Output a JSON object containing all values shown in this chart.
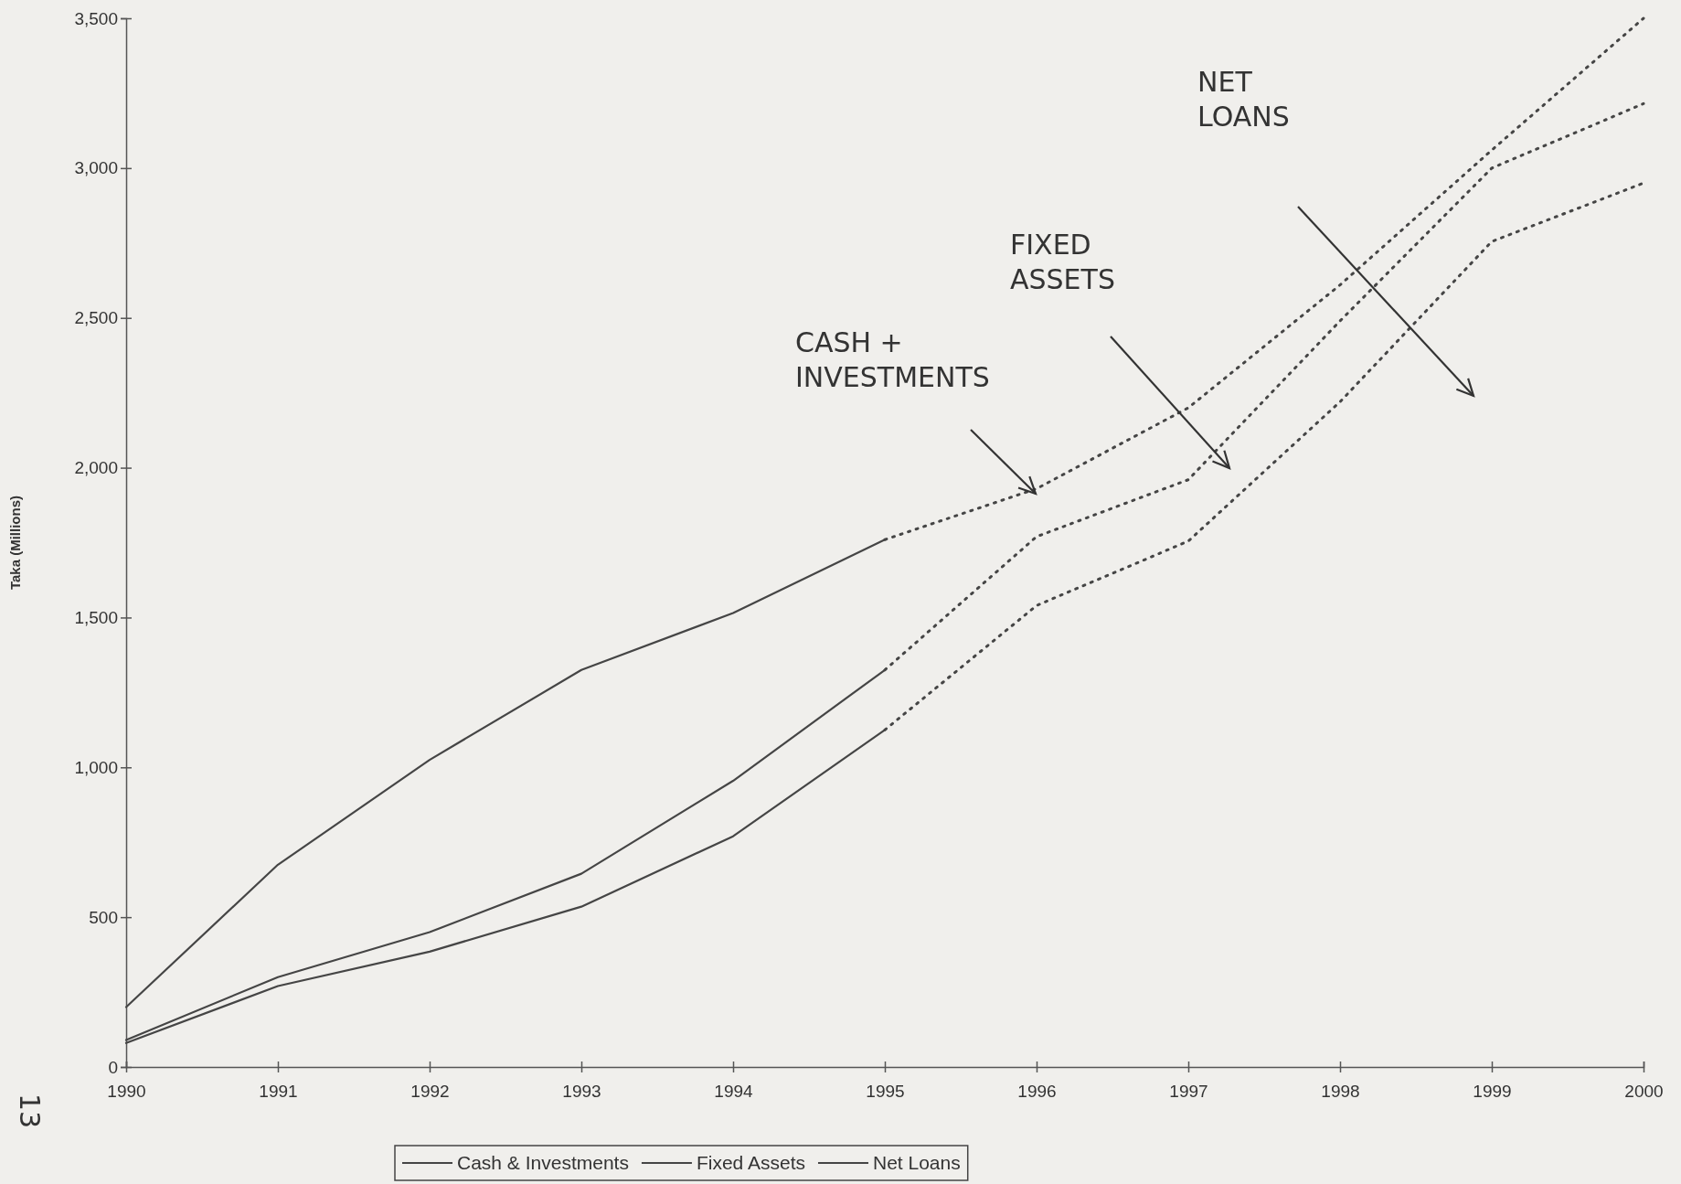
{
  "chart_data": {
    "type": "line",
    "ylabel": "Taka (Millions)",
    "xlim": [
      1990,
      2000
    ],
    "xticks": [
      1990,
      1991,
      1992,
      1993,
      1994,
      1995,
      1996,
      1997,
      1998,
      1999,
      2000
    ],
    "ylim": [
      0,
      3500
    ],
    "yticks": [
      0,
      {
        "value": 500,
        "label": "500"
      },
      {
        "value": 1000,
        "label": "1,000"
      },
      {
        "value": 1500,
        "label": "1,500"
      },
      {
        "value": 2000,
        "label": "2,000"
      },
      {
        "value": 2500,
        "label": "2,500"
      },
      {
        "value": 3000,
        "label": "3,000"
      },
      {
        "value": 3500,
        "label": "3,500"
      }
    ],
    "grid": false,
    "legend": "bottom",
    "marker": "none",
    "series": [
      {
        "name": "Cash & Investments",
        "color": "#454545",
        "line_style": "solid",
        "x": [
          1990,
          1991,
          1992,
          1993,
          1994,
          1995
        ],
        "values": [
          200,
          675,
          1025,
          1325,
          1515,
          1760
        ]
      },
      {
        "name": "Fixed Assets",
        "color": "#454545",
        "line_style": "solid",
        "x": [
          1990,
          1991,
          1992,
          1993,
          1994,
          1995
        ],
        "values": [
          90,
          300,
          450,
          645,
          955,
          1325
        ]
      },
      {
        "name": "Net Loans",
        "color": "#454545",
        "line_style": "solid",
        "x": [
          1990,
          1991,
          1992,
          1993,
          1994,
          1995
        ],
        "values": [
          80,
          270,
          385,
          535,
          770,
          1125
        ]
      },
      {
        "color": "#454545",
        "line_style": "dotted",
        "x": [
          1995,
          1996,
          1997,
          1998,
          1999,
          2000
        ],
        "values": [
          1760,
          1930,
          2200,
          2610,
          3060,
          3500
        ]
      },
      {
        "color": "#454545",
        "line_style": "dotted",
        "x": [
          1995,
          1996,
          1997,
          1998,
          1999,
          2000
        ],
        "values": [
          1325,
          1770,
          1960,
          2490,
          3000,
          3215
        ]
      },
      {
        "color": "#454545",
        "line_style": "dotted",
        "x": [
          1995,
          1996,
          1997,
          1998,
          1999,
          2000
        ],
        "values": [
          1125,
          1540,
          1755,
          2220,
          2755,
          2950
        ]
      }
    ],
    "annotations": [
      "CASH +\nINVESTMENTS",
      "FIXED\nASSETS",
      "NET\nLOANS",
      "13"
    ]
  }
}
